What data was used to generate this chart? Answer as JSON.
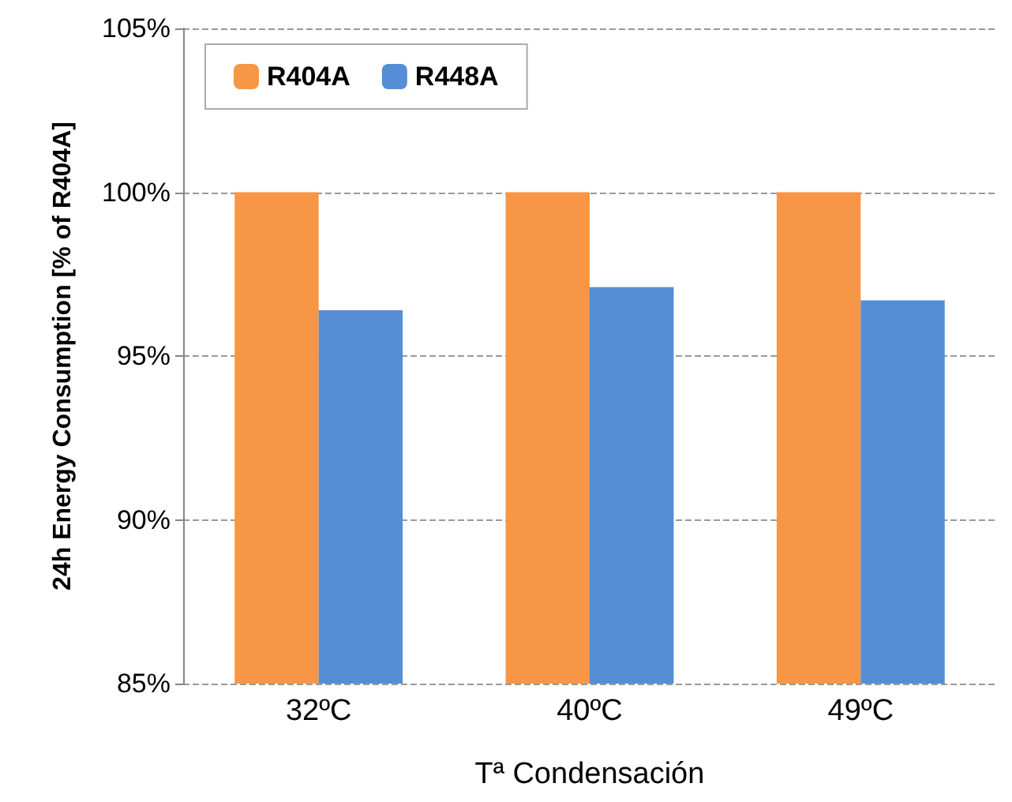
{
  "chart_data": {
    "type": "bar",
    "xlabel": "Tª Condensación",
    "ylabel": "24h Energy Consumption [% of R404A]",
    "categories": [
      "32ºC",
      "40ºC",
      "49ºC"
    ],
    "series": [
      {
        "name": "R404A",
        "color": "#f79646",
        "values": [
          100,
          100,
          100
        ]
      },
      {
        "name": "R448A",
        "color": "#558ed5",
        "values": [
          96.4,
          97.1,
          96.7
        ]
      }
    ],
    "ylim": [
      85,
      105
    ],
    "yticks": [
      {
        "value": 85,
        "label": "85%"
      },
      {
        "value": 90,
        "label": "90%"
      },
      {
        "value": 95,
        "label": "95%"
      },
      {
        "value": 100,
        "label": "100%"
      },
      {
        "value": 105,
        "label": "105%"
      }
    ],
    "grid": "y",
    "legend": "top left"
  }
}
